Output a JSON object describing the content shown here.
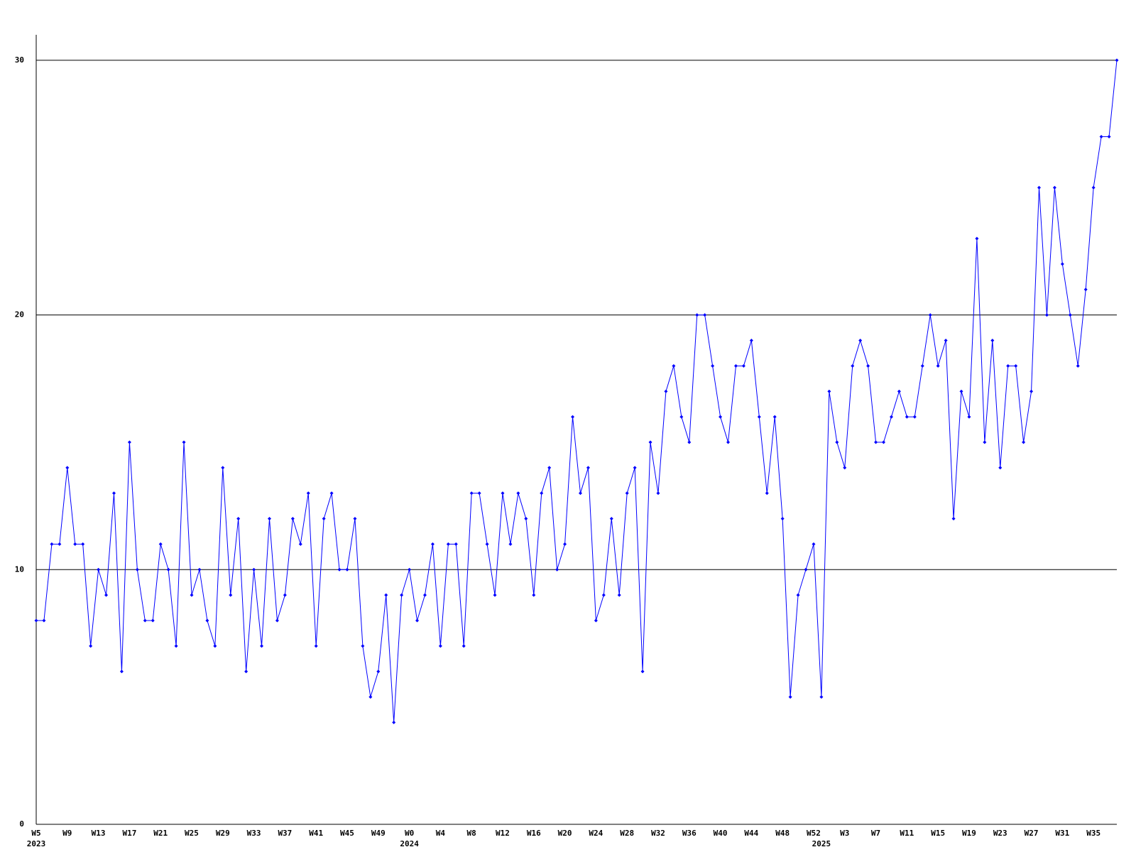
{
  "chart_data": {
    "type": "line",
    "categories": [
      "W5",
      null,
      null,
      null,
      "W9",
      null,
      null,
      null,
      "W13",
      null,
      null,
      null,
      "W17",
      null,
      null,
      null,
      "W21",
      null,
      null,
      null,
      "W25",
      null,
      null,
      null,
      "W29",
      null,
      null,
      null,
      "W33",
      null,
      null,
      null,
      "W37",
      null,
      null,
      null,
      "W41",
      null,
      null,
      null,
      "W45",
      null,
      null,
      null,
      "W49",
      null,
      null,
      null,
      "W0",
      null,
      null,
      null,
      "W4",
      null,
      null,
      null,
      "W8",
      null,
      null,
      null,
      "W12",
      null,
      null,
      null,
      "W16",
      null,
      null,
      null,
      "W20",
      null,
      null,
      null,
      "W24",
      null,
      null,
      null,
      "W28",
      null,
      null,
      null,
      "W32",
      null,
      null,
      null,
      "W36",
      null,
      null,
      null,
      "W40",
      null,
      null,
      null,
      "W44",
      null,
      null,
      null,
      "W48",
      null,
      null,
      null,
      "W52",
      null,
      null,
      null,
      "W3",
      null,
      null,
      null,
      "W7",
      null,
      null,
      null,
      "W11",
      null,
      null,
      null,
      "W15",
      null,
      null,
      null,
      "W19",
      null,
      null,
      null,
      "W23",
      null,
      null,
      null,
      "W27",
      null,
      null,
      null,
      "W31",
      null,
      null,
      null,
      "W35",
      null,
      null,
      null
    ],
    "year_labels": [
      {
        "label": "2023",
        "category_index": 0
      },
      {
        "label": "2024",
        "category_index": 48
      },
      {
        "label": "2025",
        "category_index": 101
      }
    ],
    "values": [
      8,
      8,
      11,
      11,
      14,
      11,
      11,
      7,
      10,
      9,
      13,
      6,
      15,
      10,
      8,
      8,
      11,
      10,
      7,
      15,
      9,
      10,
      8,
      7,
      14,
      9,
      12,
      6,
      10,
      7,
      12,
      8,
      9,
      12,
      11,
      13,
      7,
      12,
      13,
      10,
      10,
      12,
      7,
      5,
      6,
      9,
      4,
      9,
      10,
      8,
      9,
      11,
      7,
      11,
      11,
      7,
      13,
      13,
      11,
      9,
      13,
      11,
      13,
      12,
      9,
      13,
      14,
      10,
      11,
      16,
      13,
      14,
      8,
      9,
      12,
      9,
      13,
      14,
      6,
      15,
      13,
      17,
      18,
      16,
      15,
      20,
      20,
      18,
      16,
      15,
      18,
      18,
      19,
      16,
      13,
      16,
      12,
      5,
      9,
      10,
      11,
      5,
      17,
      15,
      14,
      18,
      19,
      18,
      15,
      15,
      16,
      17,
      16,
      16,
      18,
      20,
      18,
      19,
      12,
      17,
      16,
      23,
      15,
      19,
      14,
      18,
      18,
      15,
      17,
      25,
      20,
      25,
      22,
      20,
      18,
      21,
      25,
      27,
      27,
      30
    ],
    "color": "#0000ff",
    "ylim": [
      0,
      31
    ],
    "yticks": [
      0,
      10,
      20,
      30
    ],
    "grid": true
  }
}
